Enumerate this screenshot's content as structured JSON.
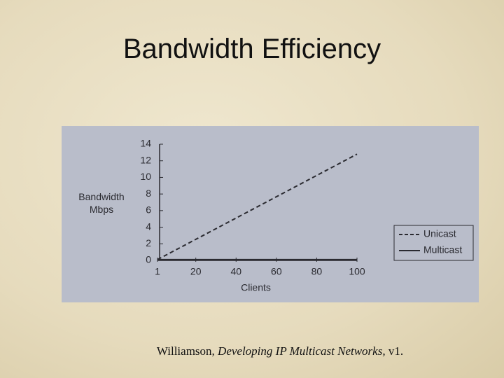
{
  "slide_title": "Bandwidth Efficiency",
  "caption": {
    "author": "Williamson,",
    "work": "Developing IP Multicast Networks,",
    "version": "v1."
  },
  "chart_data": {
    "type": "line",
    "xlabel": "Clients",
    "ylabel": "Bandwidth Mbps",
    "x": [
      1,
      100
    ],
    "series": [
      {
        "name": "Unicast",
        "color": "#2a2a30",
        "dash": true,
        "values": [
          0.1,
          12.8
        ]
      },
      {
        "name": "Multicast",
        "color": "#2a2a30",
        "dash": false,
        "values": [
          0.1,
          0.1
        ]
      }
    ],
    "xlim": [
      1,
      100
    ],
    "xticks": [
      1,
      20,
      40,
      60,
      80,
      100
    ],
    "ylim": [
      0,
      14
    ],
    "yticks": [
      0,
      2,
      4,
      6,
      8,
      10,
      12,
      14
    ],
    "legend": "lower right"
  }
}
